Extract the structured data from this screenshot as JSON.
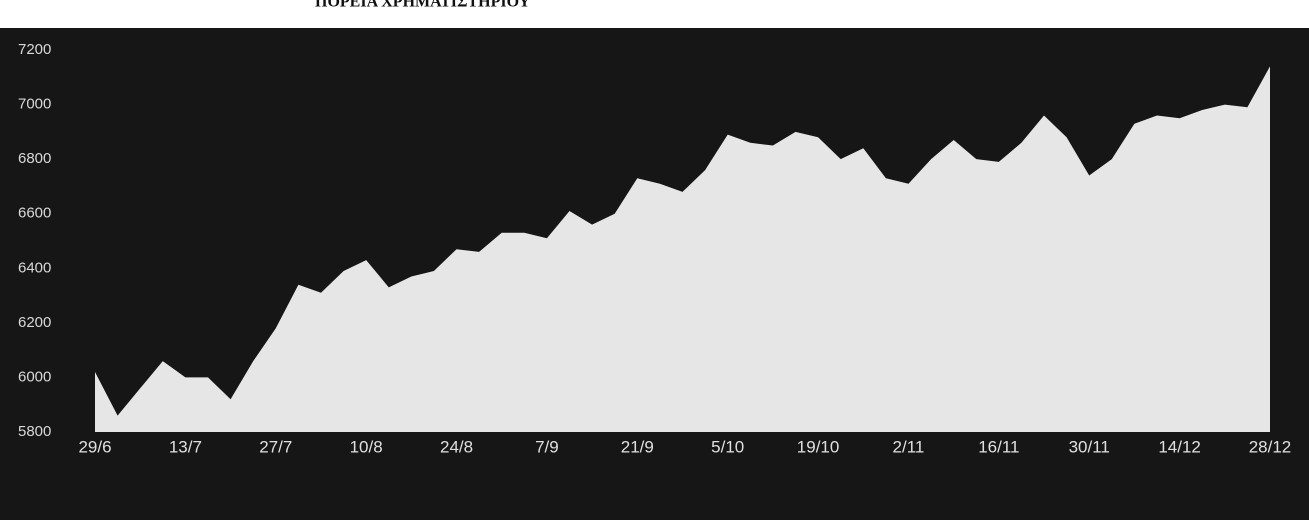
{
  "chart_data": {
    "type": "area",
    "title": "ΠΟΡΕΙΑ ΧΡΗΜΑΤΙΣΤΗΡΙΟΥ",
    "categories": [
      "29/6",
      null,
      null,
      null,
      "13/7",
      null,
      null,
      null,
      "27/7",
      null,
      null,
      null,
      "10/8",
      null,
      null,
      null,
      "24/8",
      null,
      null,
      null,
      "7/9",
      null,
      null,
      null,
      "21/9",
      null,
      null,
      null,
      "5/10",
      null,
      null,
      null,
      "19/10",
      null,
      null,
      null,
      "2/11",
      null,
      null,
      null,
      "16/11",
      null,
      null,
      null,
      "30/11",
      null,
      null,
      null,
      "14/12",
      null,
      null,
      null,
      "28/12"
    ],
    "values": [
      6020,
      5860,
      5960,
      6060,
      6000,
      6000,
      5920,
      6060,
      6180,
      6340,
      6310,
      6390,
      6430,
      6330,
      6370,
      6390,
      6470,
      6460,
      6530,
      6530,
      6510,
      6610,
      6560,
      6600,
      6730,
      6710,
      6680,
      6760,
      6890,
      6860,
      6850,
      6900,
      6880,
      6800,
      6840,
      6730,
      6710,
      6800,
      6870,
      6800,
      6790,
      6860,
      6960,
      6880,
      6740,
      6800,
      6930,
      6960,
      6950,
      6980,
      7000,
      6990,
      7140
    ],
    "color": "#e6e6e6",
    "background": "#161616",
    "ylim": [
      5800,
      7200
    ],
    "yticks": [
      5800,
      6000,
      6200,
      6400,
      6600,
      6800,
      7000,
      7200
    ]
  }
}
